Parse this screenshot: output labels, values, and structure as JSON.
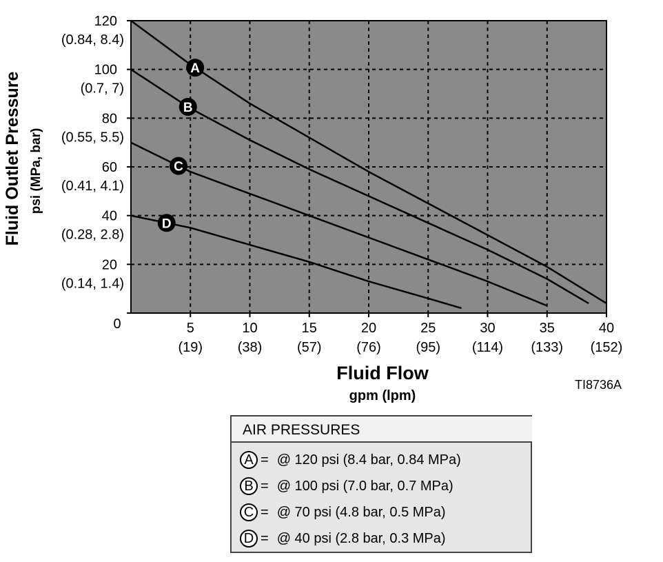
{
  "chart_data": {
    "type": "line",
    "title": "",
    "ylabel": "Fluid Outlet Pressure",
    "ylabel_units": "psi (MPa, bar)",
    "xlabel": "Fluid Flow",
    "xlabel_units": "gpm (lpm)",
    "figure_id": "TI8736A",
    "xlim": [
      0,
      40
    ],
    "ylim": [
      0,
      120
    ],
    "grid": true,
    "x_ticks": [
      {
        "value": 5,
        "label": "5",
        "sublabel": "(19)"
      },
      {
        "value": 10,
        "label": "10",
        "sublabel": "(38)"
      },
      {
        "value": 15,
        "label": "15",
        "sublabel": "(57)"
      },
      {
        "value": 20,
        "label": "20",
        "sublabel": "(76)"
      },
      {
        "value": 25,
        "label": "25",
        "sublabel": "(95)"
      },
      {
        "value": 30,
        "label": "30",
        "sublabel": "(114)"
      },
      {
        "value": 35,
        "label": "35",
        "sublabel": "(133)"
      },
      {
        "value": 40,
        "label": "40",
        "sublabel": "(152)"
      }
    ],
    "y_ticks": [
      {
        "value": 0,
        "label": "0",
        "sublabel": ""
      },
      {
        "value": 20,
        "label": "20",
        "sublabel": "(0.14, 1.4)"
      },
      {
        "value": 40,
        "label": "40",
        "sublabel": "(0.28, 2.8)"
      },
      {
        "value": 60,
        "label": "60",
        "sublabel": "(0.41, 4.1)"
      },
      {
        "value": 80,
        "label": "80",
        "sublabel": "(0.55, 5.5)"
      },
      {
        "value": 100,
        "label": "100",
        "sublabel": "(0.7, 7)"
      },
      {
        "value": 120,
        "label": "120",
        "sublabel": "(0.84, 8.4)"
      }
    ],
    "series": [
      {
        "name": "A",
        "x": [
          0,
          5,
          10,
          15,
          20,
          25,
          30,
          35,
          40
        ],
        "y": [
          120,
          102,
          86,
          72,
          58,
          45,
          32,
          19,
          4
        ],
        "marker_x": 5.4
      },
      {
        "name": "B",
        "x": [
          0,
          5,
          10,
          15,
          20,
          25,
          30,
          35,
          38.5
        ],
        "y": [
          100,
          84,
          71,
          59,
          48,
          37,
          26,
          14,
          4
        ],
        "marker_x": 4.8
      },
      {
        "name": "C",
        "x": [
          0,
          5,
          10,
          15,
          20,
          25,
          30,
          35
        ],
        "y": [
          70,
          58,
          49,
          40,
          31,
          22,
          13,
          3
        ],
        "marker_x": 4
      },
      {
        "name": "D",
        "x": [
          0,
          5,
          10,
          15,
          20,
          25,
          27.8
        ],
        "y": [
          40,
          35,
          28,
          21,
          13,
          6,
          2
        ],
        "marker_x": 3
      }
    ],
    "colors": {
      "plot_background": "#8a8a8a",
      "line": "#000000",
      "grid": "#000000"
    }
  },
  "legend": {
    "title": "AIR PRESSURES",
    "items": [
      {
        "letter": "A",
        "eq": "=",
        "text": "@ 120 psi (8.4 bar, 0.84 MPa)"
      },
      {
        "letter": "B",
        "eq": "=",
        "text": "@ 100 psi (7.0 bar, 0.7 MPa)"
      },
      {
        "letter": "C",
        "eq": "=",
        "text": "@ 70 psi (4.8 bar, 0.5 MPa)"
      },
      {
        "letter": "D",
        "eq": "=",
        "text": "@ 40 psi (2.8 bar, 0.3 MPa)"
      }
    ]
  }
}
